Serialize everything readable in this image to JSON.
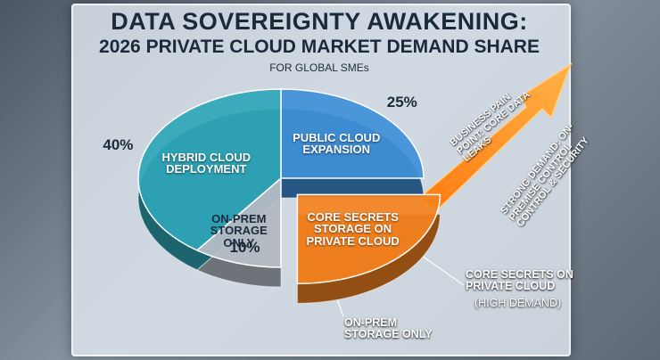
{
  "chart_data": {
    "type": "pie",
    "title": "DATA SOVEREIGNTY AWAKENING:",
    "subtitle": "2026 PRIVATE CLOUD MARKET DEMAND SHARE",
    "note": "FOR GLOBAL SMEs",
    "categories": [
      "PUBLIC CLOUD EXPANSION",
      "CORE SECRETS STORAGE ON PRIVATE CLOUD",
      "ON-PREM STORAGE ONLY",
      "HYBRID CLOUD DEPLOYMENT"
    ],
    "values": [
      25,
      25,
      10,
      40
    ],
    "value_labels": [
      "25%",
      null,
      "10%",
      "40%"
    ],
    "colors": [
      "#3f8fd8",
      "#f5821f",
      "#b8c0c9",
      "#2fa6b8"
    ],
    "exploded": [
      false,
      true,
      false,
      false
    ],
    "annotations": {
      "pain_point": "BUSINESS PAIN POINT: CORE DATA LEAKS",
      "strong_demand": "STRONG DEMAND: ON-PREMISE CONTROL CONTROL & SECURITY",
      "core_callout": "CORE SECRETS ON PRIVATE CLOUD",
      "core_callout_note": "(HIGH DEMAND)",
      "onprem_callout": "ON-PREM STORAGE ONLY"
    }
  }
}
